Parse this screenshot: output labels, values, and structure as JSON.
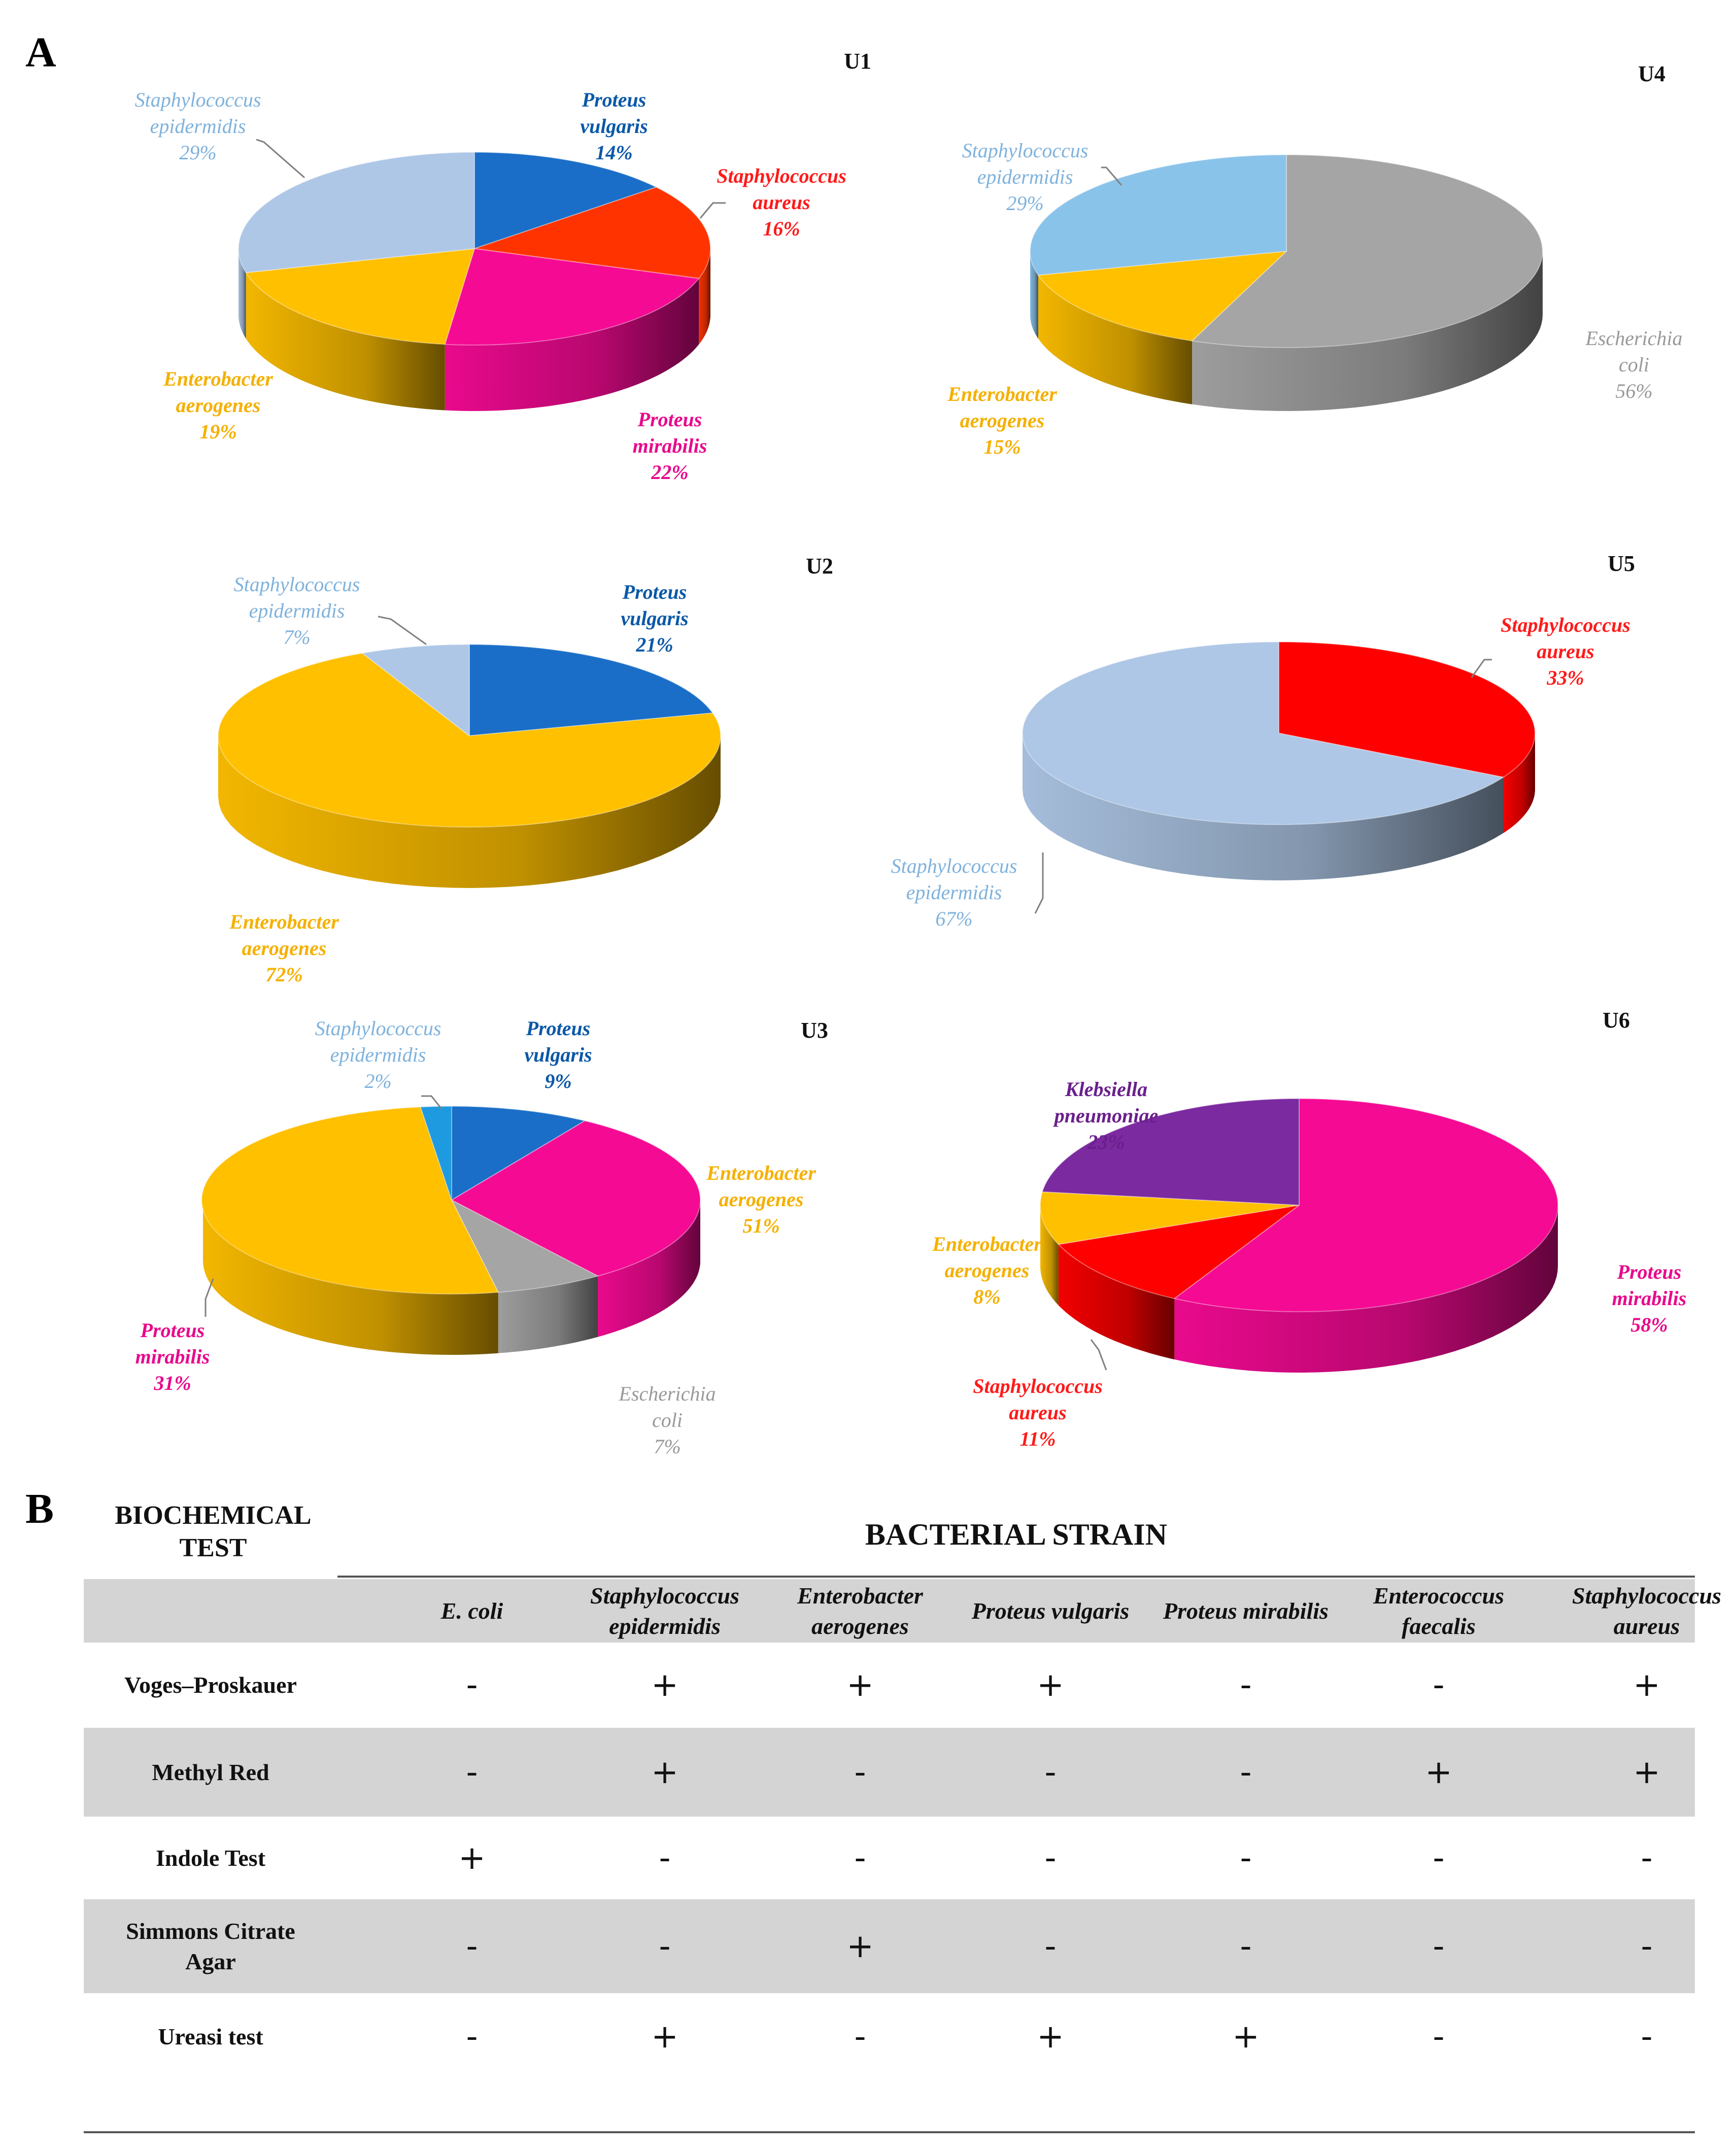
{
  "panel_a_letter": "A",
  "panel_b_letter": "B",
  "chart_data": [
    {
      "type": "pie",
      "title": "U1",
      "slices": [
        {
          "name": "Proteus vulgaris",
          "label": "14%",
          "value": 14,
          "color": "#1a6ec7",
          "text_color": "#0a58a8"
        },
        {
          "name": "Staphylococcus aureus",
          "label": "16%",
          "value": 16,
          "color": "#ff3300",
          "text_color": "#ff1a1a"
        },
        {
          "name": "Proteus mirabilis",
          "label": "22%",
          "value": 22,
          "color": "#f50a94",
          "text_color": "#e8098c"
        },
        {
          "name": "Enterobacter aerogenes",
          "label": "19%",
          "value": 19,
          "color": "#ffc000",
          "text_color": "#f5b000"
        },
        {
          "name": "Staphylococcus epidermidis",
          "label": "29%",
          "value": 29,
          "color": "#aec7e6",
          "text_color": "#7fb2dc"
        }
      ]
    },
    {
      "type": "pie",
      "title": "U4",
      "slices": [
        {
          "name": "Escherichia coli",
          "label": "56%",
          "value": 56,
          "color": "#a5a5a5",
          "text_color": "#999999"
        },
        {
          "name": "Enterobacter aerogenes",
          "label": "15%",
          "value": 15,
          "color": "#ffc000",
          "text_color": "#f5b000"
        },
        {
          "name": "Staphylococcus epidermidis",
          "label": "29%",
          "value": 29,
          "color": "#8ac3ea",
          "text_color": "#7fb2dc"
        }
      ]
    },
    {
      "type": "pie",
      "title": "U2",
      "slices": [
        {
          "name": "Proteus vulgaris",
          "label": "21%",
          "value": 21,
          "color": "#1a6ec7",
          "text_color": "#0a58a8"
        },
        {
          "name": "Enterobacter aerogenes",
          "label": "72%",
          "value": 72,
          "color": "#ffc000",
          "text_color": "#f5b000"
        },
        {
          "name": "Staphylococcus epidermidis",
          "label": "7%",
          "value": 7,
          "color": "#aec7e6",
          "text_color": "#7fb2dc"
        }
      ]
    },
    {
      "type": "pie",
      "title": "U5",
      "slices": [
        {
          "name": "Staphylococcus aureus",
          "label": "33%",
          "value": 33,
          "color": "#ff0000",
          "text_color": "#ff1a1a"
        },
        {
          "name": "Staphylococcus epidermidis",
          "label": "67%",
          "value": 67,
          "color": "#aec7e6",
          "text_color": "#7fb2dc"
        }
      ]
    },
    {
      "type": "pie",
      "title": "U3",
      "slices": [
        {
          "name": "Proteus vulgaris",
          "label": "9%",
          "value": 9,
          "color": "#1a6ec7",
          "text_color": "#0a58a8"
        },
        {
          "name": "Proteus mirabilis",
          "label": "31%",
          "value": 31,
          "color": "#f50a94",
          "text_color": "#e8098c"
        },
        {
          "name": "Escherichia coli",
          "label": "7%",
          "value": 7,
          "color": "#a5a5a5",
          "text_color": "#999999"
        },
        {
          "name": "Enterobacter aerogenes",
          "label": "51%",
          "value": 51,
          "color": "#ffc000",
          "text_color": "#f5b000"
        },
        {
          "name": "Staphylococcus epidermidis",
          "label": "2%",
          "value": 2,
          "color": "#1e9ae0",
          "text_color": "#7fb2dc"
        }
      ]
    },
    {
      "type": "pie",
      "title": "U6",
      "slices": [
        {
          "name": "Proteus mirabilis",
          "label": "58%",
          "value": 58,
          "color": "#f50a94",
          "text_color": "#e8098c"
        },
        {
          "name": "Staphylococcus aureus",
          "label": "11%",
          "value": 11,
          "color": "#ff0000",
          "text_color": "#ff1a1a"
        },
        {
          "name": "Enterobacter aerogenes",
          "label": "8%",
          "value": 8,
          "color": "#ffc000",
          "text_color": "#f5b000"
        },
        {
          "name": "Klebsiella pneumoniae",
          "label": "23%",
          "value": 23,
          "color": "#7b2aa0",
          "text_color": "#6a1f8c"
        }
      ]
    }
  ],
  "table": {
    "title_test": "BIOCHEMICAL TEST",
    "title_strain": "BACTERIAL STRAIN",
    "columns": [
      "E. coli",
      "Staphylococcus epidermidis",
      "Enterobacter aerogenes",
      "Proteus vulgaris",
      "Proteus mirabilis",
      "Enterococcus faecalis",
      "Staphylococcus aureus"
    ],
    "rows": [
      {
        "test": "Voges–Proskauer",
        "values": [
          "-",
          "+",
          "+",
          "+",
          "-",
          "-",
          "+"
        ]
      },
      {
        "test": "Methyl Red",
        "values": [
          "-",
          "+",
          "-",
          "-",
          "-",
          "+",
          "+"
        ]
      },
      {
        "test": "Indole Test",
        "values": [
          "+",
          "-",
          "-",
          "-",
          "-",
          "-",
          "-"
        ]
      },
      {
        "test": "Simmons Citrate Agar",
        "values": [
          "-",
          "-",
          "+",
          "-",
          "-",
          "-",
          "-"
        ]
      },
      {
        "test": "Ureasi test",
        "values": [
          "-",
          "+",
          "-",
          "+",
          "+",
          "-",
          "-"
        ]
      }
    ]
  }
}
